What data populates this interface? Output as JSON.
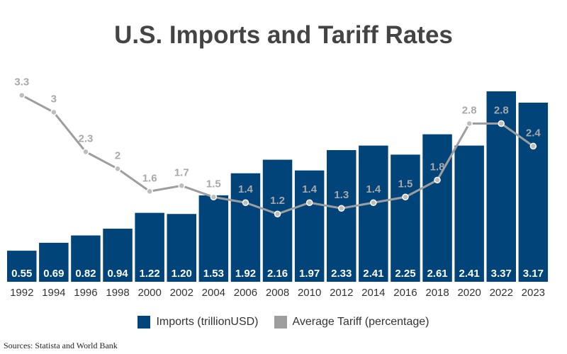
{
  "chart_data": {
    "type": "bar",
    "title": "U.S. Imports and Tariff Rates",
    "categories": [
      "1992",
      "1994",
      "1996",
      "1998",
      "2000",
      "2002",
      "2004",
      "2006",
      "2008",
      "2010",
      "2012",
      "2014",
      "2016",
      "2018",
      "2020",
      "2022",
      "2023"
    ],
    "series": [
      {
        "name": "Imports (trillionUSD)",
        "type": "bar",
        "color": "#00447a",
        "values": [
          0.55,
          0.69,
          0.82,
          0.94,
          1.22,
          1.2,
          1.53,
          1.92,
          2.16,
          1.97,
          2.33,
          2.41,
          2.25,
          2.61,
          2.41,
          3.37,
          3.17
        ],
        "labels": [
          "0.55",
          "0.69",
          "0.82",
          "0.94",
          "1.22",
          "1.20",
          "1.53",
          "1.92",
          "2.16",
          "1.97",
          "2.33",
          "2.41",
          "2.25",
          "2.61",
          "2.41",
          "3.37",
          "3.17"
        ]
      },
      {
        "name": "Average Tariff (percentage)",
        "type": "line",
        "color": "#9e9e9e",
        "values": [
          3.3,
          3,
          2.3,
          2,
          1.6,
          1.7,
          1.5,
          1.4,
          1.2,
          1.4,
          1.3,
          1.4,
          1.5,
          1.8,
          2.8,
          2.8,
          2.4
        ],
        "labels": [
          "3.3",
          "3",
          "2.3",
          "2",
          "1.6",
          "1.7",
          "1.5",
          "1.4",
          "1.2",
          "1.4",
          "1.3",
          "1.4",
          "1.5",
          "1.8",
          "2.8",
          "2.8",
          "2.4"
        ]
      }
    ],
    "ylim": [
      0,
      3.37
    ],
    "grid": false,
    "legend": "bottom"
  },
  "source": "Sources: Statista and World Bank"
}
